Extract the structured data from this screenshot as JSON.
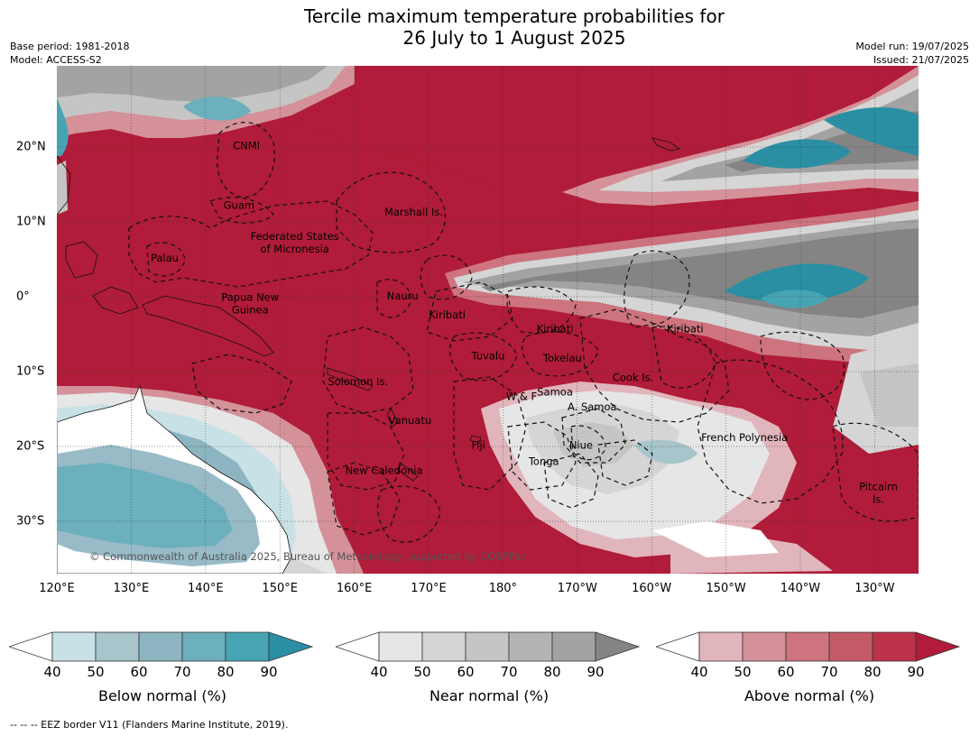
{
  "title_line1": "Tercile maximum temperature probabilities for",
  "title_line2": "26 July to 1 August 2025",
  "base_period": "Base period: 1981-2018",
  "model": "Model: ACCESS-S2",
  "model_run": "Model run: 19/07/2025",
  "issued": "Issued: 21/07/2025",
  "copyright": "© Commonwealth of Australia 2025, Bureau of Meteorology, supported by COSPPac",
  "footer": "--  --  -- EEZ border V11 (Flanders Marine Institute, 2019).",
  "lon_labels": [
    "120°E",
    "130°E",
    "140°E",
    "150°E",
    "160°E",
    "170°E",
    "180°",
    "170°W",
    "160°W",
    "150°W",
    "140°W",
    "130°W"
  ],
  "lat_labels": [
    "20°N",
    "10°N",
    "0°",
    "10°S",
    "20°S",
    "30°S"
  ],
  "regions": [
    {
      "name": "CNMI",
      "lon": 145.5,
      "lat": 20.2
    },
    {
      "name": "Guam",
      "lon": 144.5,
      "lat": 12.2
    },
    {
      "name": "Marshall Is.",
      "lon": 168,
      "lat": 11.3
    },
    {
      "name": "Federated States\nof Micronesia",
      "lon": 152,
      "lat": 7.2
    },
    {
      "name": "Palau",
      "lon": 134.5,
      "lat": 5.2
    },
    {
      "name": "Papua New\nGuinea",
      "lon": 146,
      "lat": -0.9
    },
    {
      "name": "Nauru",
      "lon": 166.5,
      "lat": 0.1
    },
    {
      "name": "Kiribati",
      "lon": 172.5,
      "lat": -2.4
    },
    {
      "name": "Kiribati",
      "lon": 187,
      "lat": -4.3
    },
    {
      "name": "Kiribati",
      "lon": 204.5,
      "lat": -4.3
    },
    {
      "name": "Tuvalu",
      "lon": 178,
      "lat": -7.9
    },
    {
      "name": "Tokelau",
      "lon": 188,
      "lat": -8.2
    },
    {
      "name": "Cook Is.",
      "lon": 197.5,
      "lat": -10.8
    },
    {
      "name": "Solomon Is.",
      "lon": 160.5,
      "lat": -11.3
    },
    {
      "name": "Samoa",
      "lon": 187,
      "lat": -12.7
    },
    {
      "name": "W & F",
      "lon": 182.5,
      "lat": -13.3
    },
    {
      "name": "A. Samoa",
      "lon": 192,
      "lat": -14.7
    },
    {
      "name": "Vanuatu",
      "lon": 167.5,
      "lat": -16.5
    },
    {
      "name": "French Polynesia",
      "lon": 212.5,
      "lat": -18.8
    },
    {
      "name": "Fiji",
      "lon": 176.7,
      "lat": -19.8
    },
    {
      "name": "Niue",
      "lon": 190.5,
      "lat": -19.8
    },
    {
      "name": "Tonga",
      "lon": 185.5,
      "lat": -22
    },
    {
      "name": "New Caledonia",
      "lon": 164,
      "lat": -23.2
    },
    {
      "name": "Pitcairn\nIs.",
      "lon": 230.5,
      "lat": -26.2
    }
  ],
  "colorbars": [
    {
      "title": "Below normal (%)",
      "ticks": [
        "40",
        "50",
        "60",
        "70",
        "80",
        "90"
      ],
      "colors": [
        "#c8e1e7",
        "#a7c5ca",
        "#8db4c1",
        "#6cafbd",
        "#47a4b3",
        "#2a8fa3"
      ]
    },
    {
      "title": "Near normal (%)",
      "ticks": [
        "40",
        "50",
        "60",
        "70",
        "80",
        "90"
      ],
      "colors": [
        "#e6e6e6",
        "#d5d5d5",
        "#c5c5c5",
        "#b4b4b4",
        "#a3a3a3",
        "#848484"
      ]
    },
    {
      "title": "Above normal (%)",
      "ticks": [
        "40",
        "50",
        "60",
        "70",
        "80",
        "90"
      ],
      "colors": [
        "#e1b5bc",
        "#d49199",
        "#cd747e",
        "#c55a67",
        "#bb3249",
        "#b01c39"
      ]
    }
  ],
  "colors": {
    "above_dominant": "#b01c39",
    "near_dominant": "#848484",
    "below_dominant": "#2a8fa3",
    "land": "#ffffff",
    "coast": "#111111"
  }
}
